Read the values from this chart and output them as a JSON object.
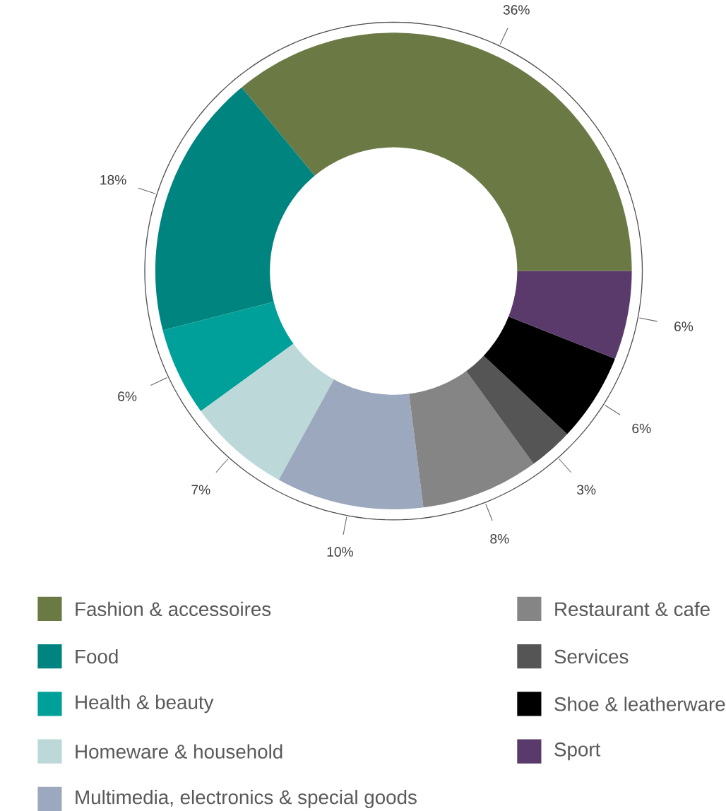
{
  "chart_data": {
    "type": "donut",
    "categories": [
      "Fashion & accessoires",
      "Food",
      "Health & beauty",
      "Homeware & household",
      "Multimedia, electronics & special goods",
      "Restaurant & cafe",
      "Services",
      "Shoe & leatherware",
      "Sport"
    ],
    "values": [
      36,
      18,
      6,
      7,
      10,
      8,
      3,
      6,
      6
    ],
    "value_labels": [
      "36%",
      "18%",
      "6%",
      "7%",
      "10%",
      "8%",
      "3%",
      "6%",
      "6%"
    ],
    "colors": [
      "#6b7a45",
      "#00847f",
      "#00a09a",
      "#bcd8d9",
      "#9ba8bd",
      "#858585",
      "#555555",
      "#000000",
      "#5a3a6a"
    ],
    "legend": "bottom"
  }
}
